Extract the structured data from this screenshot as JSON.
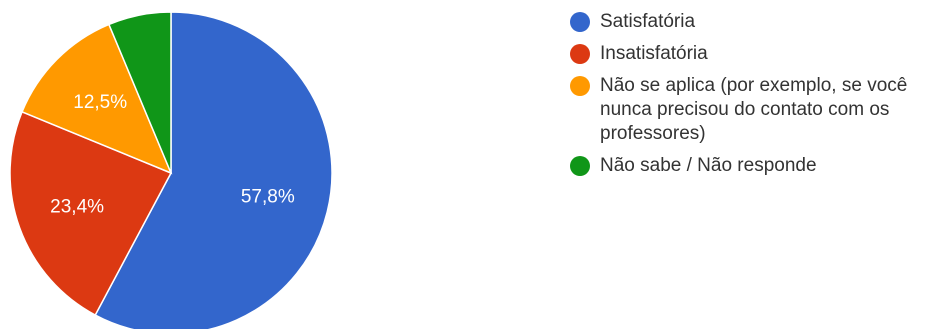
{
  "chart_data": {
    "type": "pie",
    "title": "",
    "slices": [
      {
        "label": "Satisfatória",
        "value": 57.8,
        "display": "57,8%",
        "color": "#3366cc",
        "show_label": true
      },
      {
        "label": "Insatisfatória",
        "value": 23.4,
        "display": "23,4%",
        "color": "#dc3912",
        "show_label": true
      },
      {
        "label": "Não se aplica (por exemplo, se você nunca precisou do contato com os professores)",
        "value": 12.5,
        "display": "12,5%",
        "color": "#ff9900",
        "show_label": true
      },
      {
        "label": "Não sabe / Não responde",
        "value": 6.3,
        "display": "",
        "color": "#109618",
        "show_label": false
      }
    ],
    "start_angle_deg": 90,
    "direction": "clockwise",
    "legend_position": "right"
  }
}
